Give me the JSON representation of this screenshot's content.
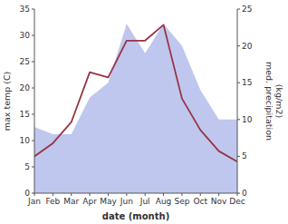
{
  "chart_data": {
    "type": "line",
    "categories": [
      "Jan",
      "Feb",
      "Mar",
      "Apr",
      "May",
      "Jun",
      "Jul",
      "Aug",
      "Sep",
      "Oct",
      "Nov",
      "Dec"
    ],
    "x_label": "date (month)",
    "y_label": "max temp (C)",
    "y2_label": "med. precipitation\n(kg/m2)",
    "series": [
      {
        "type": "area",
        "axis": "y2",
        "color": "#aab4e8",
        "values": [
          9,
          8,
          8,
          13,
          15,
          23,
          19,
          23,
          20,
          14,
          10,
          10
        ]
      },
      {
        "type": "line",
        "color": "#993344",
        "values": [
          7.0,
          9.5,
          13.5,
          23.0,
          22.0,
          29.0,
          29.0,
          32.0,
          18.0,
          12.0,
          8.0,
          6.0
        ]
      }
    ],
    "ylim": [
      0,
      35
    ],
    "yticks": [
      0,
      5,
      10,
      15,
      20,
      25,
      30,
      35
    ],
    "y2lim": [
      0,
      25
    ],
    "y2ticks": [
      0,
      5,
      10,
      15,
      20,
      25
    ],
    "grid": false
  }
}
